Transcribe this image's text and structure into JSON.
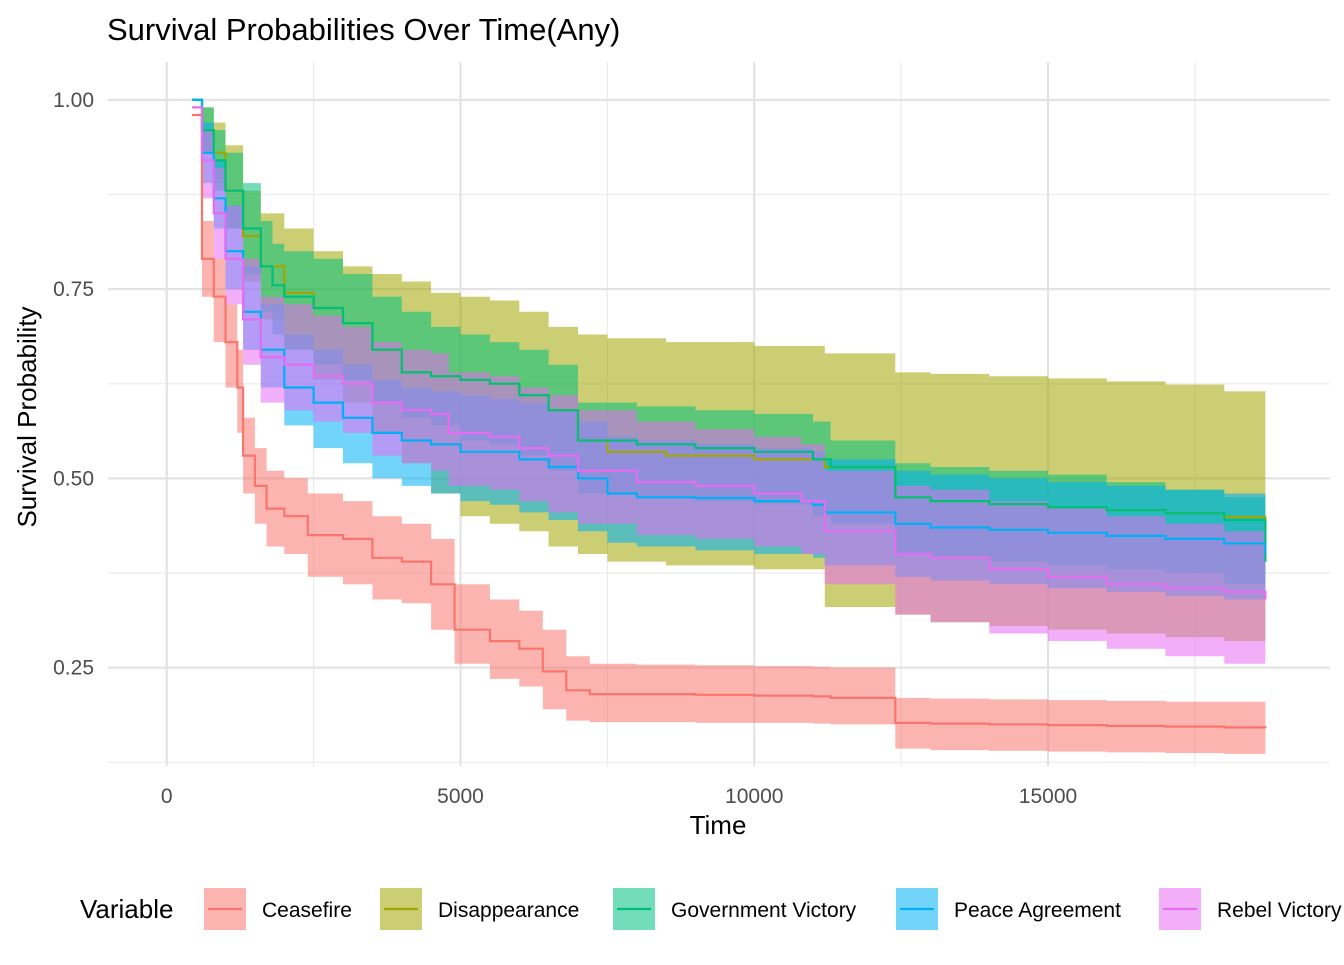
{
  "chart_data": {
    "type": "line",
    "title": "Survival Probabilities Over Time(Any)",
    "xlabel": "Time",
    "ylabel": "Survival Probability",
    "xlim": [
      -1000,
      19800
    ],
    "ylim": [
      0.12,
      1.05
    ],
    "x_ticks": [
      0,
      5000,
      10000,
      15000
    ],
    "x_tick_labels": [
      "0",
      "5000",
      "10000",
      "15000"
    ],
    "y_ticks": [
      0.25,
      0.5,
      0.75,
      1.0
    ],
    "y_tick_labels": [
      "0.25",
      "0.50",
      "0.75",
      "1.00"
    ],
    "grid": true,
    "legend": {
      "title": "Variable",
      "position": "bottom"
    },
    "series": [
      {
        "name": "Ceasefire",
        "color": "#F8766D",
        "x": [
          430,
          600,
          800,
          1000,
          1200,
          1300,
          1500,
          1700,
          2000,
          2400,
          3000,
          3500,
          4000,
          4500,
          4900,
          5500,
          6000,
          6400,
          6800,
          7200,
          8000,
          9000,
          10000,
          11000,
          11300,
          12400,
          13000,
          14000,
          15000,
          16000,
          17000,
          18000,
          18700
        ],
        "y": [
          0.98,
          0.79,
          0.74,
          0.68,
          0.62,
          0.53,
          0.49,
          0.46,
          0.45,
          0.425,
          0.42,
          0.395,
          0.39,
          0.36,
          0.3,
          0.285,
          0.275,
          0.245,
          0.22,
          0.215,
          0.215,
          0.214,
          0.213,
          0.212,
          0.21,
          0.177,
          0.176,
          0.175,
          0.174,
          0.173,
          0.172,
          0.171,
          0.17
        ],
        "lower": [
          0.98,
          0.74,
          0.68,
          0.62,
          0.56,
          0.48,
          0.44,
          0.41,
          0.4,
          0.37,
          0.36,
          0.34,
          0.335,
          0.3,
          0.255,
          0.235,
          0.225,
          0.195,
          0.18,
          0.178,
          0.178,
          0.177,
          0.177,
          0.176,
          0.175,
          0.143,
          0.141,
          0.14,
          0.139,
          0.138,
          0.137,
          0.136,
          0.134
        ],
        "upper": [
          0.98,
          0.84,
          0.79,
          0.73,
          0.67,
          0.58,
          0.54,
          0.51,
          0.5,
          0.48,
          0.47,
          0.45,
          0.44,
          0.42,
          0.36,
          0.34,
          0.325,
          0.3,
          0.265,
          0.255,
          0.254,
          0.253,
          0.252,
          0.251,
          0.25,
          0.21,
          0.209,
          0.208,
          0.207,
          0.206,
          0.205,
          0.205,
          0.204
        ]
      },
      {
        "name": "Disappearance",
        "color": "#A3A500",
        "x": [
          430,
          600,
          800,
          1000,
          1300,
          1600,
          2000,
          2500,
          3000,
          3500,
          4000,
          4500,
          5000,
          5500,
          6000,
          6500,
          7000,
          7500,
          8500,
          10000,
          11200,
          12400,
          13000,
          14000,
          15000,
          16000,
          17000,
          18000,
          18700
        ],
        "y": [
          1.0,
          0.96,
          0.93,
          0.88,
          0.82,
          0.78,
          0.745,
          0.725,
          0.705,
          0.67,
          0.64,
          0.635,
          0.63,
          0.625,
          0.61,
          0.59,
          0.55,
          0.535,
          0.53,
          0.525,
          0.515,
          0.475,
          0.47,
          0.466,
          0.462,
          0.458,
          0.454,
          0.449,
          0.43
        ],
        "lower": [
          1.0,
          0.93,
          0.89,
          0.83,
          0.76,
          0.71,
          0.67,
          0.63,
          0.6,
          0.56,
          0.52,
          0.48,
          0.45,
          0.44,
          0.43,
          0.41,
          0.4,
          0.39,
          0.385,
          0.38,
          0.33,
          0.32,
          0.31,
          0.305,
          0.3,
          0.295,
          0.29,
          0.285,
          0.28
        ],
        "upper": [
          1.0,
          0.99,
          0.97,
          0.94,
          0.88,
          0.85,
          0.83,
          0.8,
          0.78,
          0.77,
          0.76,
          0.745,
          0.74,
          0.735,
          0.72,
          0.7,
          0.69,
          0.685,
          0.68,
          0.675,
          0.665,
          0.64,
          0.638,
          0.635,
          0.632,
          0.628,
          0.624,
          0.615,
          0.59
        ]
      },
      {
        "name": "Government Victory",
        "color": "#00BF7D",
        "x": [
          430,
          600,
          800,
          1000,
          1300,
          1600,
          1800,
          2000,
          2500,
          3000,
          3500,
          4000,
          4500,
          5000,
          5500,
          6000,
          6500,
          7000,
          8000,
          9000,
          10000,
          11000,
          11300,
          12400,
          13000,
          14000,
          15000,
          16000,
          17000,
          18000,
          18700
        ],
        "y": [
          1.0,
          0.96,
          0.92,
          0.88,
          0.83,
          0.78,
          0.755,
          0.74,
          0.725,
          0.705,
          0.67,
          0.64,
          0.635,
          0.63,
          0.625,
          0.61,
          0.59,
          0.55,
          0.545,
          0.54,
          0.535,
          0.525,
          0.515,
          0.475,
          0.47,
          0.466,
          0.462,
          0.458,
          0.454,
          0.445,
          0.39
        ],
        "lower": [
          1.0,
          0.93,
          0.88,
          0.83,
          0.77,
          0.72,
          0.69,
          0.67,
          0.65,
          0.63,
          0.6,
          0.58,
          0.57,
          0.55,
          0.545,
          0.53,
          0.51,
          0.48,
          0.475,
          0.47,
          0.465,
          0.45,
          0.44,
          0.4,
          0.395,
          0.39,
          0.385,
          0.38,
          0.375,
          0.36,
          0.32
        ],
        "upper": [
          1.0,
          0.99,
          0.96,
          0.93,
          0.89,
          0.84,
          0.81,
          0.8,
          0.79,
          0.77,
          0.74,
          0.72,
          0.7,
          0.69,
          0.68,
          0.67,
          0.65,
          0.6,
          0.595,
          0.59,
          0.585,
          0.575,
          0.55,
          0.52,
          0.515,
          0.51,
          0.505,
          0.495,
          0.485,
          0.475,
          0.46
        ]
      },
      {
        "name": "Peace Agreement",
        "color": "#00B0F6",
        "x": [
          430,
          600,
          800,
          1000,
          1300,
          1600,
          2000,
          2500,
          3000,
          3500,
          4000,
          4500,
          5000,
          5500,
          6000,
          6500,
          7000,
          7500,
          8000,
          9000,
          10000,
          11000,
          11200,
          12400,
          13000,
          14000,
          15000,
          16000,
          17000,
          18000,
          18700
        ],
        "y": [
          1.0,
          0.93,
          0.87,
          0.8,
          0.72,
          0.67,
          0.62,
          0.6,
          0.58,
          0.56,
          0.55,
          0.545,
          0.535,
          0.535,
          0.525,
          0.515,
          0.5,
          0.48,
          0.475,
          0.474,
          0.47,
          0.465,
          0.455,
          0.44,
          0.435,
          0.432,
          0.428,
          0.424,
          0.42,
          0.414,
          0.4
        ],
        "lower": [
          1.0,
          0.89,
          0.83,
          0.75,
          0.67,
          0.62,
          0.57,
          0.54,
          0.52,
          0.5,
          0.49,
          0.48,
          0.47,
          0.465,
          0.455,
          0.445,
          0.43,
          0.415,
          0.41,
          0.405,
          0.4,
          0.395,
          0.385,
          0.37,
          0.365,
          0.36,
          0.355,
          0.35,
          0.345,
          0.34,
          0.33
        ],
        "upper": [
          1.0,
          0.97,
          0.92,
          0.86,
          0.78,
          0.73,
          0.69,
          0.67,
          0.65,
          0.63,
          0.62,
          0.615,
          0.61,
          0.605,
          0.6,
          0.59,
          0.575,
          0.555,
          0.55,
          0.545,
          0.54,
          0.535,
          0.525,
          0.51,
          0.505,
          0.5,
          0.495,
          0.49,
          0.485,
          0.48,
          0.47
        ]
      },
      {
        "name": "Rebel Victory",
        "color": "#E76BF3",
        "x": [
          430,
          600,
          800,
          1000,
          1300,
          1600,
          2000,
          2500,
          3000,
          3500,
          4000,
          4500,
          4800,
          5500,
          6000,
          6500,
          7000,
          8000,
          9000,
          10000,
          10800,
          11200,
          12400,
          13000,
          14000,
          15000,
          16000,
          17000,
          18000,
          18700
        ],
        "y": [
          0.99,
          0.92,
          0.85,
          0.79,
          0.71,
          0.66,
          0.65,
          0.635,
          0.625,
          0.6,
          0.59,
          0.585,
          0.56,
          0.555,
          0.54,
          0.53,
          0.51,
          0.495,
          0.49,
          0.48,
          0.47,
          0.43,
          0.4,
          0.395,
          0.38,
          0.37,
          0.36,
          0.355,
          0.35,
          0.34
        ],
        "lower": [
          0.99,
          0.87,
          0.79,
          0.73,
          0.65,
          0.6,
          0.59,
          0.575,
          0.56,
          0.53,
          0.52,
          0.51,
          0.49,
          0.485,
          0.47,
          0.455,
          0.44,
          0.425,
          0.42,
          0.41,
          0.4,
          0.36,
          0.32,
          0.31,
          0.295,
          0.285,
          0.275,
          0.265,
          0.255,
          0.24
        ],
        "upper": [
          0.99,
          0.96,
          0.91,
          0.86,
          0.79,
          0.74,
          0.73,
          0.715,
          0.7,
          0.68,
          0.67,
          0.665,
          0.64,
          0.635,
          0.62,
          0.61,
          0.59,
          0.575,
          0.565,
          0.555,
          0.545,
          0.51,
          0.49,
          0.485,
          0.47,
          0.46,
          0.45,
          0.44,
          0.43,
          0.42
        ]
      }
    ]
  }
}
